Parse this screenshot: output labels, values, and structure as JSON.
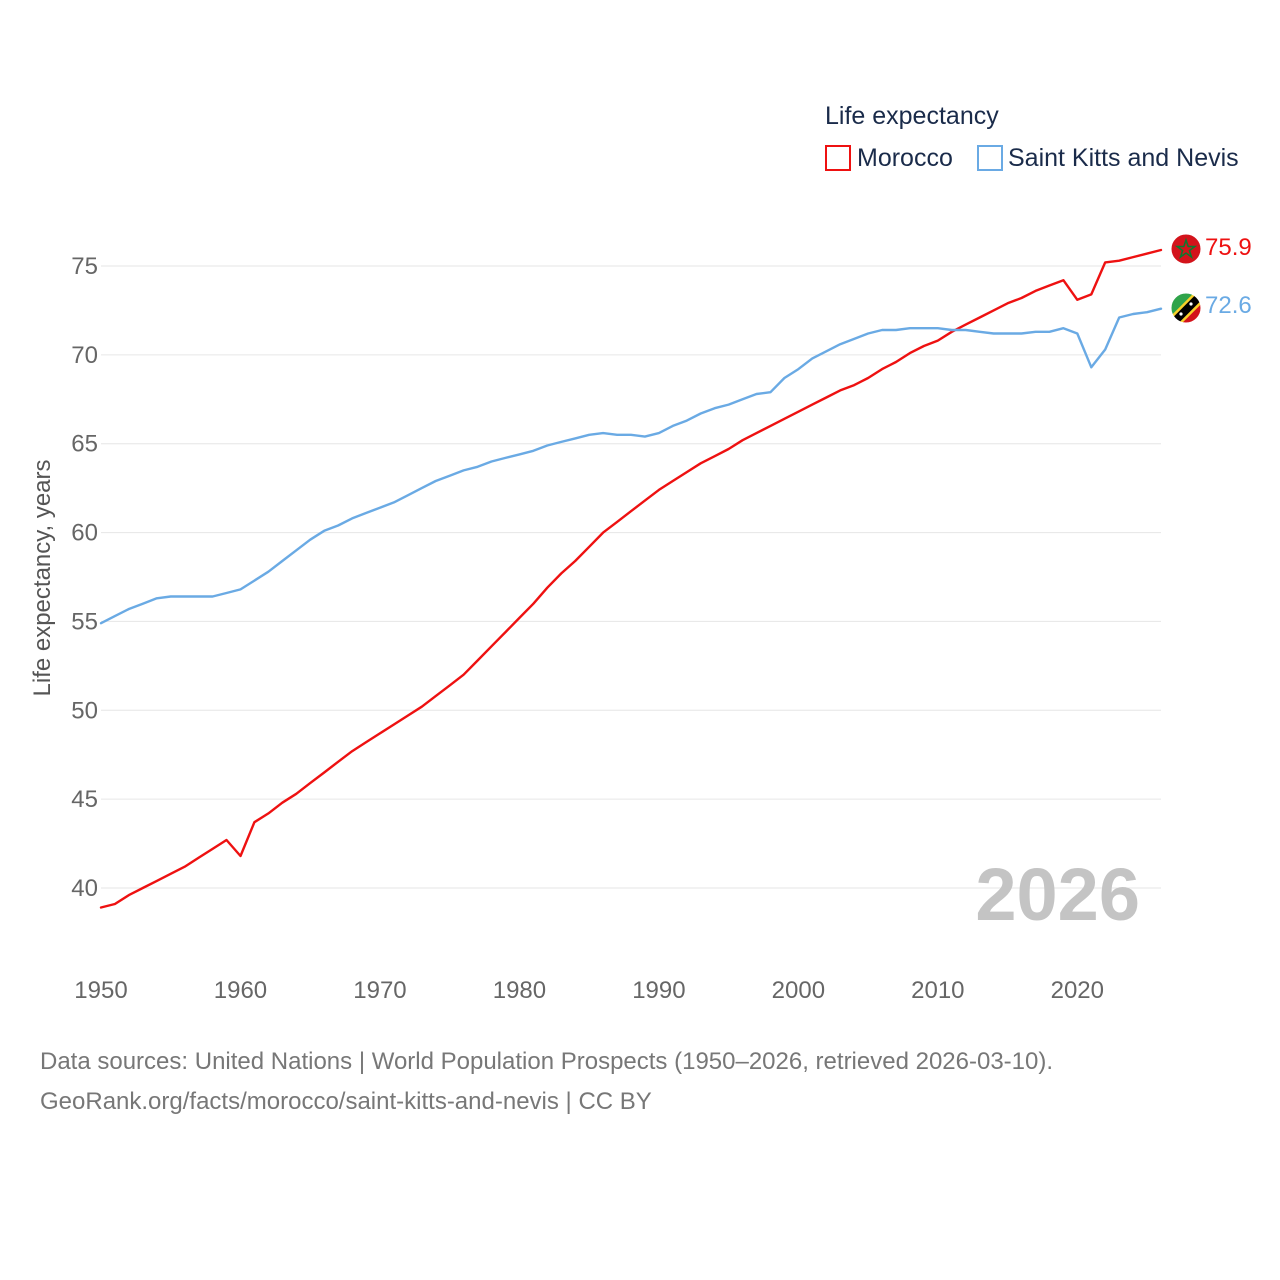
{
  "chart_data": {
    "type": "line",
    "legend_title": "Life expectancy",
    "ylabel": "Life expectancy, years",
    "xlabel": "",
    "watermark_year": "2026",
    "x_ticks": [
      "1950",
      "1960",
      "1970",
      "1980",
      "1990",
      "2000",
      "2010",
      "2020"
    ],
    "y_ticks": [
      "40",
      "45",
      "50",
      "55",
      "60",
      "65",
      "70",
      "75"
    ],
    "xlim": [
      1950,
      2026
    ],
    "ylim": [
      37.5,
      77.5
    ],
    "legend_position": "top-right",
    "series": [
      {
        "name": "Morocco",
        "color": "#ee1111",
        "end_label": "75.9",
        "flag": "morocco-flag",
        "points": [
          [
            1950,
            38.9
          ],
          [
            1951,
            39.1
          ],
          [
            1952,
            39.6
          ],
          [
            1953,
            40.0
          ],
          [
            1954,
            40.4
          ],
          [
            1955,
            40.8
          ],
          [
            1956,
            41.2
          ],
          [
            1957,
            41.7
          ],
          [
            1958,
            42.2
          ],
          [
            1959,
            42.7
          ],
          [
            1960,
            41.8
          ],
          [
            1961,
            43.7
          ],
          [
            1962,
            44.2
          ],
          [
            1963,
            44.8
          ],
          [
            1964,
            45.3
          ],
          [
            1965,
            45.9
          ],
          [
            1966,
            46.5
          ],
          [
            1967,
            47.1
          ],
          [
            1968,
            47.7
          ],
          [
            1969,
            48.2
          ],
          [
            1970,
            48.7
          ],
          [
            1971,
            49.2
          ],
          [
            1972,
            49.7
          ],
          [
            1973,
            50.2
          ],
          [
            1974,
            50.8
          ],
          [
            1975,
            51.4
          ],
          [
            1976,
            52.0
          ],
          [
            1977,
            52.8
          ],
          [
            1978,
            53.6
          ],
          [
            1979,
            54.4
          ],
          [
            1980,
            55.2
          ],
          [
            1981,
            56.0
          ],
          [
            1982,
            56.9
          ],
          [
            1983,
            57.7
          ],
          [
            1984,
            58.4
          ],
          [
            1985,
            59.2
          ],
          [
            1986,
            60.0
          ],
          [
            1987,
            60.6
          ],
          [
            1988,
            61.2
          ],
          [
            1989,
            61.8
          ],
          [
            1990,
            62.4
          ],
          [
            1991,
            62.9
          ],
          [
            1992,
            63.4
          ],
          [
            1993,
            63.9
          ],
          [
            1994,
            64.3
          ],
          [
            1995,
            64.7
          ],
          [
            1996,
            65.2
          ],
          [
            1997,
            65.6
          ],
          [
            1998,
            66.0
          ],
          [
            1999,
            66.4
          ],
          [
            2000,
            66.8
          ],
          [
            2001,
            67.2
          ],
          [
            2002,
            67.6
          ],
          [
            2003,
            68.0
          ],
          [
            2004,
            68.3
          ],
          [
            2005,
            68.7
          ],
          [
            2006,
            69.2
          ],
          [
            2007,
            69.6
          ],
          [
            2008,
            70.1
          ],
          [
            2009,
            70.5
          ],
          [
            2010,
            70.8
          ],
          [
            2011,
            71.3
          ],
          [
            2012,
            71.7
          ],
          [
            2013,
            72.1
          ],
          [
            2014,
            72.5
          ],
          [
            2015,
            72.9
          ],
          [
            2016,
            73.2
          ],
          [
            2017,
            73.6
          ],
          [
            2018,
            73.9
          ],
          [
            2019,
            74.2
          ],
          [
            2020,
            73.1
          ],
          [
            2021,
            73.4
          ],
          [
            2022,
            75.2
          ],
          [
            2023,
            75.3
          ],
          [
            2024,
            75.5
          ],
          [
            2025,
            75.7
          ],
          [
            2026,
            75.9
          ]
        ]
      },
      {
        "name": "Saint Kitts and Nevis",
        "color": "#6aaae4",
        "end_label": "72.6",
        "flag": "saint-kitts-and-nevis-flag",
        "points": [
          [
            1950,
            54.9
          ],
          [
            1951,
            55.3
          ],
          [
            1952,
            55.7
          ],
          [
            1953,
            56.0
          ],
          [
            1954,
            56.3
          ],
          [
            1955,
            56.4
          ],
          [
            1956,
            56.4
          ],
          [
            1957,
            56.4
          ],
          [
            1958,
            56.4
          ],
          [
            1959,
            56.6
          ],
          [
            1960,
            56.8
          ],
          [
            1961,
            57.3
          ],
          [
            1962,
            57.8
          ],
          [
            1963,
            58.4
          ],
          [
            1964,
            59.0
          ],
          [
            1965,
            59.6
          ],
          [
            1966,
            60.1
          ],
          [
            1967,
            60.4
          ],
          [
            1968,
            60.8
          ],
          [
            1969,
            61.1
          ],
          [
            1970,
            61.4
          ],
          [
            1971,
            61.7
          ],
          [
            1972,
            62.1
          ],
          [
            1973,
            62.5
          ],
          [
            1974,
            62.9
          ],
          [
            1975,
            63.2
          ],
          [
            1976,
            63.5
          ],
          [
            1977,
            63.7
          ],
          [
            1978,
            64.0
          ],
          [
            1979,
            64.2
          ],
          [
            1980,
            64.4
          ],
          [
            1981,
            64.6
          ],
          [
            1982,
            64.9
          ],
          [
            1983,
            65.1
          ],
          [
            1984,
            65.3
          ],
          [
            1985,
            65.5
          ],
          [
            1986,
            65.6
          ],
          [
            1987,
            65.5
          ],
          [
            1988,
            65.5
          ],
          [
            1989,
            65.4
          ],
          [
            1990,
            65.6
          ],
          [
            1991,
            66.0
          ],
          [
            1992,
            66.3
          ],
          [
            1993,
            66.7
          ],
          [
            1994,
            67.0
          ],
          [
            1995,
            67.2
          ],
          [
            1996,
            67.5
          ],
          [
            1997,
            67.8
          ],
          [
            1998,
            67.9
          ],
          [
            1999,
            68.7
          ],
          [
            2000,
            69.2
          ],
          [
            2001,
            69.8
          ],
          [
            2002,
            70.2
          ],
          [
            2003,
            70.6
          ],
          [
            2004,
            70.9
          ],
          [
            2005,
            71.2
          ],
          [
            2006,
            71.4
          ],
          [
            2007,
            71.4
          ],
          [
            2008,
            71.5
          ],
          [
            2009,
            71.5
          ],
          [
            2010,
            71.5
          ],
          [
            2011,
            71.4
          ],
          [
            2012,
            71.4
          ],
          [
            2013,
            71.3
          ],
          [
            2014,
            71.2
          ],
          [
            2015,
            71.2
          ],
          [
            2016,
            71.2
          ],
          [
            2017,
            71.3
          ],
          [
            2018,
            71.3
          ],
          [
            2019,
            71.5
          ],
          [
            2020,
            71.2
          ],
          [
            2021,
            69.3
          ],
          [
            2022,
            70.3
          ],
          [
            2023,
            72.1
          ],
          [
            2024,
            72.3
          ],
          [
            2025,
            72.4
          ],
          [
            2026,
            72.6
          ]
        ]
      }
    ]
  },
  "footer": {
    "line1": "Data sources: United Nations | World Population Prospects (1950–2026, retrieved 2026-03-10).",
    "line2": "GeoRank.org/facts/morocco/saint-kitts-and-nevis | CC BY"
  }
}
